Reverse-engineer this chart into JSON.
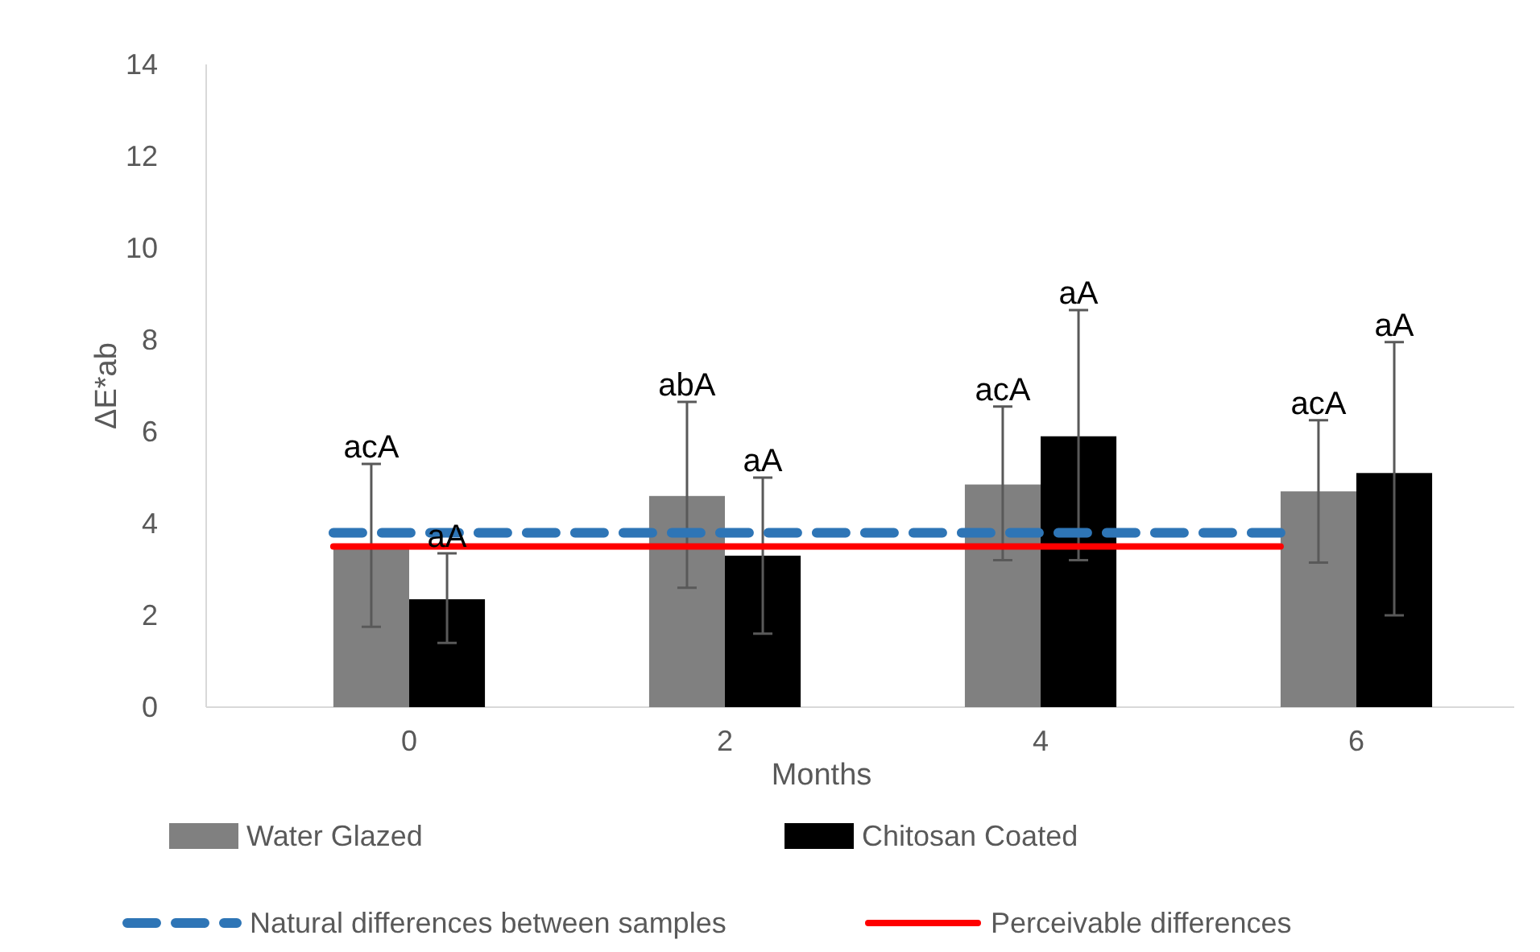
{
  "chart_data": {
    "type": "bar",
    "xlabel": "Months",
    "ylabel": "ΔE*ab",
    "categories": [
      "0",
      "2",
      "4",
      "6"
    ],
    "series": [
      {
        "name": "Water Glazed",
        "color": "#808080",
        "values": [
          3.45,
          4.6,
          4.85,
          4.7
        ],
        "errors": [
          [
            1.75,
            5.3
          ],
          [
            2.6,
            6.65
          ],
          [
            3.2,
            6.55
          ],
          [
            3.15,
            6.25
          ]
        ]
      },
      {
        "name": "Chitosan Coated",
        "color": "#000000",
        "values": [
          2.35,
          3.3,
          5.9,
          5.1
        ],
        "errors": [
          [
            1.4,
            3.35
          ],
          [
            1.6,
            5.0
          ],
          [
            3.2,
            8.65
          ],
          [
            2.0,
            7.95
          ]
        ]
      },
      {
        "name": "Natural differences between samples",
        "type": "line",
        "line_style": "dashed",
        "color": "#2e75b6",
        "values": [
          3.8,
          3.8,
          3.8,
          3.8
        ]
      },
      {
        "name": "Perceivable differences",
        "type": "line",
        "line_style": "solid",
        "color": "#ff0000",
        "values": [
          3.5,
          3.5,
          3.5,
          3.5
        ]
      }
    ],
    "annotations": [
      "acA",
      "aA",
      "abA",
      "aA",
      "acA",
      "aA",
      "acA",
      "aA"
    ],
    "ylim": [
      0,
      14
    ],
    "yticks": [
      0,
      2,
      4,
      6,
      8,
      10,
      12,
      14
    ],
    "grid": false,
    "legend": "bottom"
  }
}
